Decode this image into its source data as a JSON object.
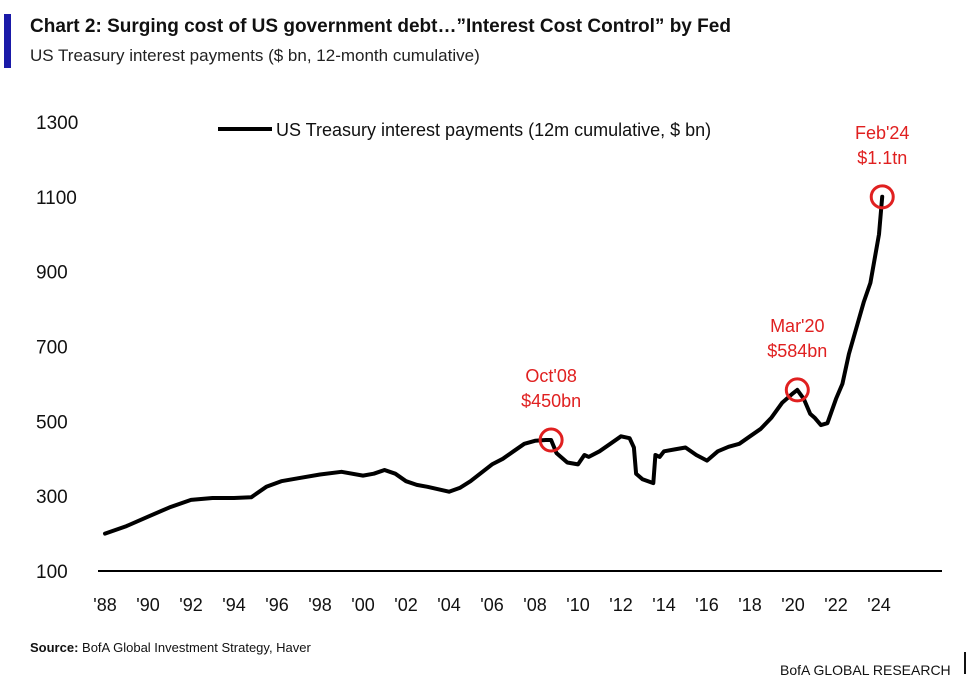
{
  "header": {
    "title": "Chart 2: Surging cost of US government debt…”Interest Cost Control” by Fed",
    "subtitle": "US Treasury interest payments ($ bn, 12-month cumulative)"
  },
  "footer": {
    "source_label": "Source:",
    "source_text": "BofA Global Investment Strategy, Haver",
    "brand": "BofA GLOBAL RESEARCH"
  },
  "colors": {
    "accent": "#1a1aa8",
    "line": "#000000",
    "highlight": "#e02020"
  },
  "chart_data": {
    "type": "line",
    "legend": {
      "label": "US Treasury interest payments (12m cumulative, $ bn)",
      "position": "top"
    },
    "ylim": [
      100,
      1300
    ],
    "yticks": [
      "100",
      "300",
      "500",
      "700",
      "900",
      "1100",
      "1300"
    ],
    "xlim": [
      1988,
      2026
    ],
    "xticks": [
      {
        "x": 1988,
        "label": "'88"
      },
      {
        "x": 1990,
        "label": "'90"
      },
      {
        "x": 1992,
        "label": "'92"
      },
      {
        "x": 1994,
        "label": "'94"
      },
      {
        "x": 1996,
        "label": "'96"
      },
      {
        "x": 1998,
        "label": "'98"
      },
      {
        "x": 2000,
        "label": "'00"
      },
      {
        "x": 2002,
        "label": "'02"
      },
      {
        "x": 2004,
        "label": "'04"
      },
      {
        "x": 2006,
        "label": "'06"
      },
      {
        "x": 2008,
        "label": "'08"
      },
      {
        "x": 2010,
        "label": "'10"
      },
      {
        "x": 2012,
        "label": "'12"
      },
      {
        "x": 2014,
        "label": "'14"
      },
      {
        "x": 2016,
        "label": "'16"
      },
      {
        "x": 2018,
        "label": "'18"
      },
      {
        "x": 2020,
        "label": "'20"
      },
      {
        "x": 2022,
        "label": "'22"
      },
      {
        "x": 2024,
        "label": "'24"
      }
    ],
    "grid": false,
    "series": [
      {
        "name": "US Treasury interest payments (12m cumulative, $ bn)",
        "x": [
          1988.0,
          1989.0,
          1990.0,
          1991.0,
          1992.0,
          1993.0,
          1994.0,
          1994.8,
          1995.5,
          1996.2,
          1997.0,
          1998.0,
          1999.0,
          2000.0,
          2000.5,
          2001.0,
          2001.5,
          2002.0,
          2002.5,
          2003.0,
          2004.0,
          2004.5,
          2005.0,
          2006.0,
          2006.5,
          2007.0,
          2007.5,
          2008.0,
          2008.5,
          2008.75,
          2009.0,
          2009.5,
          2010.0,
          2010.3,
          2010.5,
          2011.0,
          2011.5,
          2012.0,
          2012.4,
          2012.6,
          2012.7,
          2013.0,
          2013.5,
          2013.6,
          2013.8,
          2014.0,
          2014.5,
          2015.0,
          2015.5,
          2016.0,
          2016.5,
          2017.0,
          2017.5,
          2018.0,
          2018.5,
          2019.0,
          2019.5,
          2020.0,
          2020.2,
          2020.5,
          2020.8,
          2021.0,
          2021.3,
          2021.6,
          2022.0,
          2022.3,
          2022.6,
          2023.0,
          2023.3,
          2023.6,
          2024.0,
          2024.15
        ],
        "values": [
          200,
          220,
          245,
          270,
          290,
          295,
          295,
          297,
          325,
          340,
          348,
          358,
          365,
          355,
          360,
          370,
          360,
          340,
          330,
          325,
          312,
          322,
          340,
          385,
          400,
          420,
          440,
          448,
          450,
          450,
          415,
          390,
          385,
          410,
          405,
          420,
          440,
          460,
          455,
          430,
          360,
          345,
          335,
          410,
          405,
          420,
          425,
          430,
          410,
          395,
          420,
          432,
          440,
          460,
          480,
          510,
          550,
          575,
          584,
          560,
          520,
          510,
          490,
          495,
          560,
          600,
          680,
          760,
          820,
          870,
          1000,
          1100
        ]
      }
    ],
    "annotations": [
      {
        "x": 2008.75,
        "y": 450,
        "label_line1": "Oct'08",
        "label_line2": "$450bn"
      },
      {
        "x": 2020.2,
        "y": 584,
        "label_line1": "Mar'20",
        "label_line2": "$584bn"
      },
      {
        "x": 2024.15,
        "y": 1100,
        "label_line1": "Feb'24",
        "label_line2": "$1.1tn"
      }
    ]
  }
}
